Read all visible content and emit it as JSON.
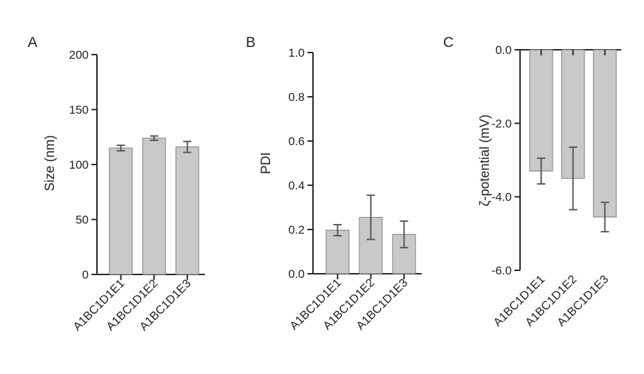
{
  "colors": {
    "bar": "#c9c9c9",
    "bar_edge": "#7a7a7a",
    "axis": "#222222",
    "error": "#555555"
  },
  "chart_data": [
    {
      "type": "bar",
      "panel": "A",
      "categories": [
        "A1BC1D1E1",
        "A1BC1D1E2",
        "A1BC1D1E3"
      ],
      "values": [
        115,
        124,
        116
      ],
      "errors": [
        2.5,
        2,
        5
      ],
      "ylabel": "Size (nm)",
      "ylim": [
        0,
        200
      ],
      "yticks": [
        0,
        50,
        100,
        150,
        200
      ]
    },
    {
      "type": "bar",
      "panel": "B",
      "categories": [
        "A1BC1D1E1",
        "A1BC1D1E2",
        "A1BC1D1E3"
      ],
      "values": [
        0.197,
        0.255,
        0.178
      ],
      "errors": [
        0.025,
        0.1,
        0.06
      ],
      "ylabel": "PDI",
      "ylim": [
        0,
        1.0
      ],
      "yticks": [
        0.0,
        0.2,
        0.4,
        0.6,
        0.8,
        1.0
      ]
    },
    {
      "type": "bar",
      "panel": "C",
      "categories": [
        "A1BC1D1E1",
        "A1BC1D1E2",
        "A1BC1D1E3"
      ],
      "values": [
        -3.3,
        -3.5,
        -4.55
      ],
      "errors": [
        0.35,
        0.85,
        0.4
      ],
      "ylabel": "ζ-potential (mV)",
      "ylim": [
        -6,
        0
      ],
      "yticks": [
        0,
        -2,
        -4,
        -6
      ]
    }
  ]
}
